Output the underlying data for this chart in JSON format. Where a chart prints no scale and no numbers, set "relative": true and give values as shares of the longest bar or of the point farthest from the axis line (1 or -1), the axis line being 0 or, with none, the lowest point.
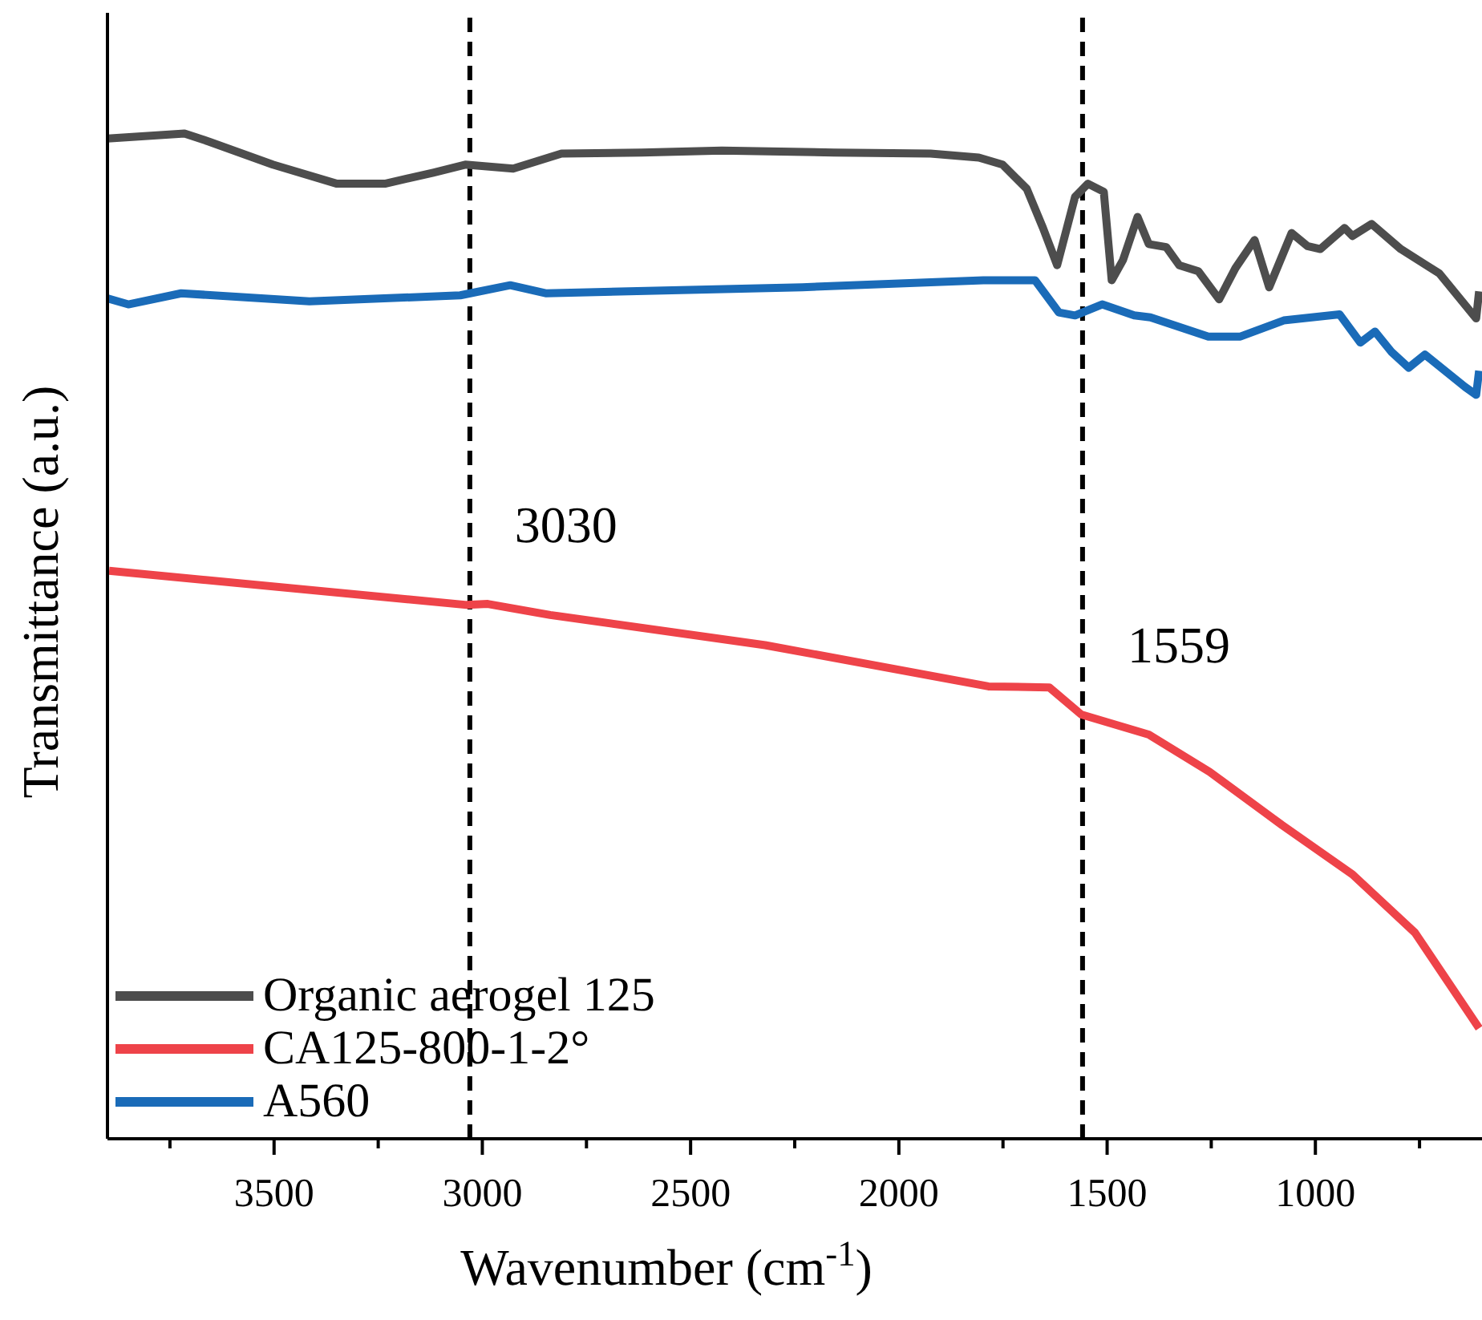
{
  "chart_data": {
    "type": "line",
    "relative": true,
    "xlabel": "Wavenumber (cm$^{-1}$)",
    "ylabel": "Transmittance (a.u.)",
    "xlim": [
      3900,
      600
    ],
    "xticks": [
      {
        "value": 3750,
        "label": null
      },
      3500,
      {
        "value": 3250,
        "label": null
      },
      3000,
      {
        "value": 2750,
        "label": null
      },
      2500,
      {
        "value": 2250,
        "label": null
      },
      2000,
      {
        "value": 1750,
        "label": null
      },
      1500,
      {
        "value": 1250,
        "label": null
      },
      1000,
      {
        "value": 750,
        "label": null
      }
    ],
    "legend": "bottom left",
    "marker": "none",
    "line_style": "solid",
    "ref_lines": [
      {
        "axis": "x",
        "value": 3030,
        "label": "3030",
        "color": "#000000",
        "line_style": "dashed"
      },
      {
        "axis": "x",
        "value": 1559,
        "label": "1559",
        "color": "#000000",
        "line_style": "dashed"
      }
    ],
    "series": [
      {
        "name": "Organic aerogel 125",
        "color": "#4d4d4d",
        "x": [
          3900,
          3715,
          3657,
          3503,
          3349,
          3234,
          3118,
          3041,
          2926,
          2810,
          2617,
          2425,
          2155,
          1924,
          1808,
          1751,
          1693,
          1654,
          1620,
          1577,
          1546,
          1508,
          1489,
          1462,
          1427,
          1400,
          1358,
          1327,
          1281,
          1231,
          1192,
          1146,
          1111,
          1057,
          1019,
          988,
          930,
          911,
          865,
          795,
          703,
          614,
          607
        ],
        "values": [
          0.995,
          1.0,
          0.992,
          0.969,
          0.95,
          0.95,
          0.961,
          0.969,
          0.965,
          0.98,
          0.981,
          0.983,
          0.981,
          0.98,
          0.976,
          0.969,
          0.945,
          0.906,
          0.869,
          0.937,
          0.95,
          0.942,
          0.854,
          0.874,
          0.917,
          0.89,
          0.887,
          0.869,
          0.863,
          0.835,
          0.866,
          0.894,
          0.847,
          0.901,
          0.888,
          0.885,
          0.906,
          0.898,
          0.91,
          0.885,
          0.861,
          0.816,
          0.843
        ]
      },
      {
        "name": "CA125-800-1-2°",
        "color": "#ee4349",
        "x": [
          3896,
          3037,
          2987,
          2837,
          2321,
          1785,
          1639,
          1562,
          1400,
          1254,
          1080,
          911,
          761,
          607
        ],
        "values": [
          0.565,
          0.531,
          0.532,
          0.521,
          0.491,
          0.45,
          0.449,
          0.422,
          0.402,
          0.365,
          0.312,
          0.263,
          0.205,
          0.11
        ]
      },
      {
        "name": "A560",
        "color": "#1a6bb8",
        "x": [
          3900,
          3850,
          3723,
          3415,
          3053,
          2933,
          2848,
          2232,
          1797,
          1673,
          1616,
          1577,
          1512,
          1435,
          1396,
          1257,
          1180,
          1076,
          942,
          892,
          857,
          818,
          776,
          737,
          641,
          614,
          607
        ],
        "values": [
          0.836,
          0.83,
          0.841,
          0.833,
          0.839,
          0.849,
          0.841,
          0.847,
          0.854,
          0.854,
          0.822,
          0.819,
          0.83,
          0.819,
          0.817,
          0.798,
          0.798,
          0.814,
          0.82,
          0.792,
          0.803,
          0.783,
          0.767,
          0.78,
          0.748,
          0.74,
          0.764
        ]
      }
    ]
  }
}
